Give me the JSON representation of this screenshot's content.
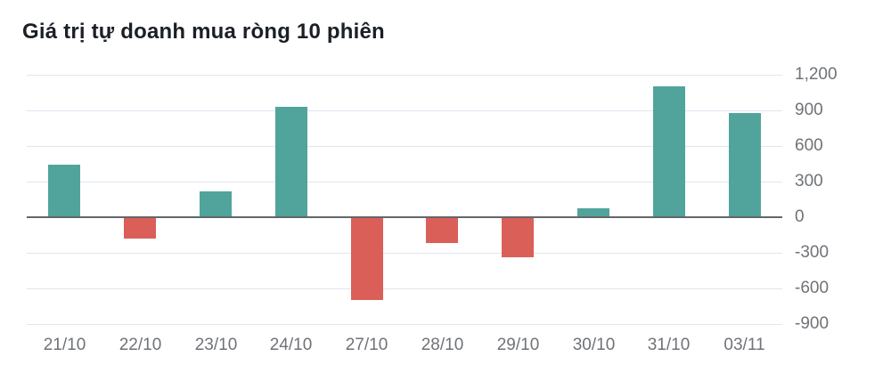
{
  "title": "Giá trị tự doanh mua ròng 10 phiên",
  "colors": {
    "positive": "#50a49b",
    "negative": "#da5f58",
    "gridline": "#e1e5f0",
    "zero_line": "#63666a",
    "axis_label": "#6f7277",
    "title": "#1b1f26",
    "background": "#ffffff"
  },
  "chart_data": {
    "type": "bar",
    "title": "Giá trị tự doanh mua ròng 10 phiên",
    "categories": [
      "21/10",
      "22/10",
      "23/10",
      "24/10",
      "27/10",
      "28/10",
      "29/10",
      "30/10",
      "31/10",
      "03/11"
    ],
    "values": [
      445,
      -180,
      220,
      930,
      -700,
      -220,
      -340,
      75,
      1100,
      875
    ],
    "xlabel": "",
    "ylabel": "",
    "ylim": [
      -900,
      1200
    ],
    "yticks": [
      1200,
      900,
      600,
      300,
      0,
      -300,
      -600,
      -900
    ],
    "ytick_labels": [
      "1,200",
      "900",
      "600",
      "300",
      "0",
      "-300",
      "-600",
      "-900"
    ],
    "ytick_step": 300,
    "y_axis_position": "right",
    "grid": true,
    "legend": false,
    "positive_color": "#50a49b",
    "negative_color": "#da5f58"
  }
}
